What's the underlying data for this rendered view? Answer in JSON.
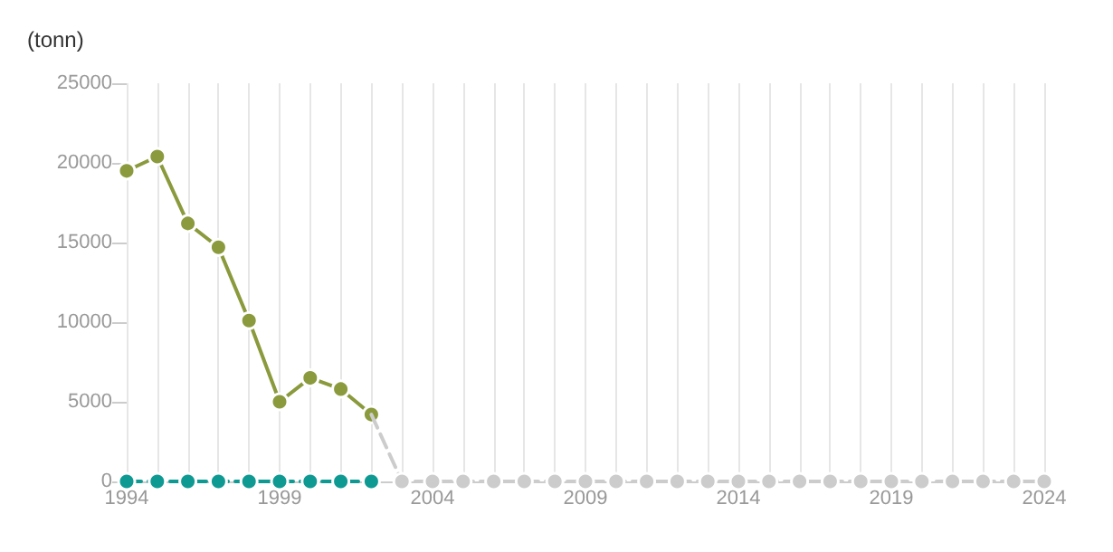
{
  "chart_data": {
    "type": "line",
    "ylabel": "(tonn)",
    "xlim": [
      1994,
      2024
    ],
    "xticks": [
      1994,
      {
        "value": 1995,
        "label": null
      },
      {
        "value": 1996,
        "label": null
      },
      {
        "value": 1997,
        "label": null
      },
      {
        "value": 1998,
        "label": null
      },
      1999,
      {
        "value": 2000,
        "label": null
      },
      {
        "value": 2001,
        "label": null
      },
      {
        "value": 2002,
        "label": null
      },
      {
        "value": 2003,
        "label": null
      },
      2004,
      {
        "value": 2005,
        "label": null
      },
      {
        "value": 2006,
        "label": null
      },
      {
        "value": 2007,
        "label": null
      },
      {
        "value": 2008,
        "label": null
      },
      2009,
      {
        "value": 2010,
        "label": null
      },
      {
        "value": 2011,
        "label": null
      },
      {
        "value": 2012,
        "label": null
      },
      {
        "value": 2013,
        "label": null
      },
      2014,
      {
        "value": 2015,
        "label": null
      },
      {
        "value": 2016,
        "label": null
      },
      {
        "value": 2017,
        "label": null
      },
      {
        "value": 2018,
        "label": null
      },
      2019,
      {
        "value": 2020,
        "label": null
      },
      {
        "value": 2021,
        "label": null
      },
      {
        "value": 2022,
        "label": null
      },
      {
        "value": 2023,
        "label": null
      },
      2024
    ],
    "ylim": [
      0,
      25000
    ],
    "yticks": [
      0,
      5000,
      10000,
      15000,
      20000,
      25000
    ],
    "grid": "x",
    "marker": "circle",
    "series": [
      {
        "color": "#8a9a3c",
        "line_style": "solid",
        "x": [
          1994,
          1995,
          1996,
          1997,
          1998,
          1999,
          2000,
          2001,
          2002
        ],
        "values": [
          19500,
          20400,
          16200,
          14700,
          10100,
          5000,
          6500,
          5800,
          4200
        ]
      },
      {
        "color": "#0e9a93",
        "line_style": "dashed",
        "x": [
          1994,
          1995,
          1996,
          1997,
          1998,
          1999,
          2000,
          2001,
          2002
        ],
        "values": [
          0,
          0,
          0,
          0,
          0,
          0,
          0,
          0,
          0
        ]
      },
      {
        "color": "#cccccc",
        "line_style": "dashed",
        "x": [
          2002,
          2003,
          2004,
          2005,
          2006,
          2007,
          2008,
          2009,
          2010,
          2011,
          2012,
          2013,
          2014,
          2015,
          2016,
          2017,
          2018,
          2019,
          2020,
          2021,
          2022,
          2023,
          2024
        ],
        "values": [
          4200,
          0,
          0,
          0,
          0,
          0,
          0,
          0,
          0,
          0,
          0,
          0,
          0,
          0,
          0,
          0,
          0,
          0,
          0,
          0,
          0,
          0,
          0
        ]
      }
    ]
  }
}
